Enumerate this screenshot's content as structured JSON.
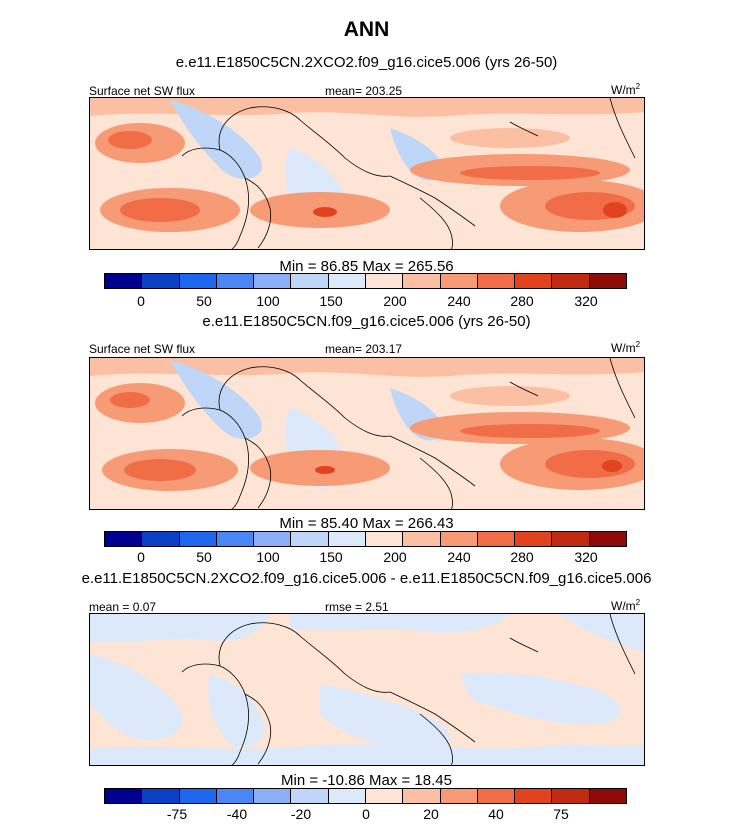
{
  "title": "ANN",
  "colors": {
    "palette": [
      "#000090",
      "#0b3fc4",
      "#1f66ee",
      "#4a86f5",
      "#8bb0f7",
      "#c0d6f8",
      "#dbe9fb",
      "#fde4d4",
      "#fbc0a3",
      "#f79a76",
      "#f06d48",
      "#e2431f",
      "#c02a13",
      "#8f0b07"
    ],
    "land_outline": "#000000",
    "frame": "#000000"
  },
  "panels": [
    {
      "title": "e.e11.E1850C5CN.2XCO2.f09_g16.cice5.006 (yrs 26-50)",
      "left_label": "Surface net SW flux",
      "center_label": "mean= 203.25",
      "units": "W/m",
      "units_sup": "2",
      "minmax": "Min =  86.85 Max = 265.56",
      "ticks": [
        "0",
        "50",
        "100",
        "150",
        "200",
        "240",
        "280",
        "320"
      ]
    },
    {
      "title": "e.e11.E1850C5CN.f09_g16.cice5.006 (yrs 26-50)",
      "left_label": "Surface net SW flux",
      "center_label": "mean= 203.17",
      "units": "W/m",
      "units_sup": "2",
      "minmax": "Min =  85.40 Max = 266.43",
      "ticks": [
        "0",
        "50",
        "100",
        "150",
        "200",
        "240",
        "280",
        "320"
      ]
    },
    {
      "title": "e.e11.E1850C5CN.2XCO2.f09_g16.cice5.006 - e.e11.E1850C5CN.f09_g16.cice5.006",
      "left_label": "mean =   0.07",
      "center_label": "rmse =   2.51",
      "units": "W/m",
      "units_sup": "2",
      "minmax": "Min = -10.86 Max =  18.45",
      "ticks": [
        "-75",
        "-40",
        "-20",
        "0",
        "20",
        "40",
        "75"
      ]
    }
  ]
}
